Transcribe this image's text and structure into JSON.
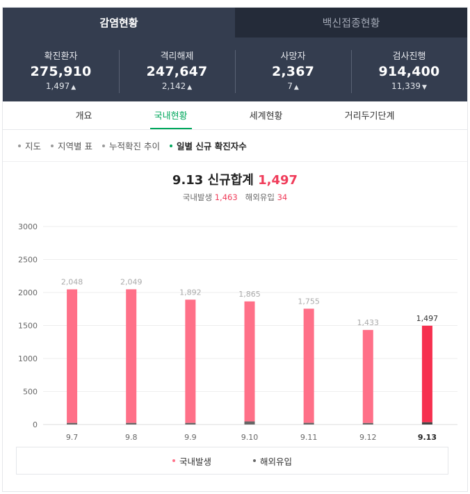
{
  "tabs": [
    {
      "label": "감염현황",
      "active": true
    },
    {
      "label": "백신접종현황",
      "active": false
    }
  ],
  "stats": [
    {
      "label": "확진환자",
      "value": "275,910",
      "delta": "1,497",
      "direction": "up"
    },
    {
      "label": "격리해제",
      "value": "247,647",
      "delta": "2,142",
      "direction": "up"
    },
    {
      "label": "사망자",
      "value": "2,367",
      "delta": "7",
      "direction": "up"
    },
    {
      "label": "검사진행",
      "value": "914,400",
      "delta": "11,339",
      "direction": "down"
    }
  ],
  "subnav": [
    {
      "label": "개요",
      "active": false
    },
    {
      "label": "국내현황",
      "active": true
    },
    {
      "label": "세계현황",
      "active": false
    },
    {
      "label": "거리두기단계",
      "active": false
    }
  ],
  "filters": [
    {
      "label": "지도",
      "active": false
    },
    {
      "label": "지역별 표",
      "active": false
    },
    {
      "label": "누적확진 추이",
      "active": false
    },
    {
      "label": "일별 신규 확진자수",
      "active": true
    }
  ],
  "summary": {
    "title_prefix": "9.13 신규합계",
    "total": "1,497",
    "domestic_label": "국내발생",
    "domestic_value": "1,463",
    "overseas_label": "해외유입",
    "overseas_value": "34"
  },
  "colors": {
    "domestic": "#ff7088",
    "domestic_today": "#f6304f",
    "overseas": "#666666",
    "accent_green": "#00a75c",
    "header_dark": "#343d4f"
  },
  "chart_data": {
    "type": "bar",
    "stacked": true,
    "categories": [
      "9.7",
      "9.8",
      "9.9",
      "9.10",
      "9.11",
      "9.12",
      "9.13"
    ],
    "totals": [
      2048,
      2049,
      1892,
      1865,
      1755,
      1433,
      1497
    ],
    "total_labels": [
      "2,048",
      "2,049",
      "1,892",
      "1,865",
      "1,755",
      "1,433",
      "1,497"
    ],
    "series": [
      {
        "name": "국내발생",
        "values": [
          2024,
          2025,
          1868,
          1818,
          1730,
          1410,
          1463
        ]
      },
      {
        "name": "해외유입",
        "values": [
          24,
          24,
          24,
          47,
          25,
          23,
          34
        ]
      }
    ],
    "highlight_index": 6,
    "y_ticks": [
      0,
      500,
      1000,
      1500,
      2000,
      2500,
      3000
    ],
    "ylim": [
      0,
      3000
    ],
    "grid": true,
    "legend": "bottom"
  }
}
